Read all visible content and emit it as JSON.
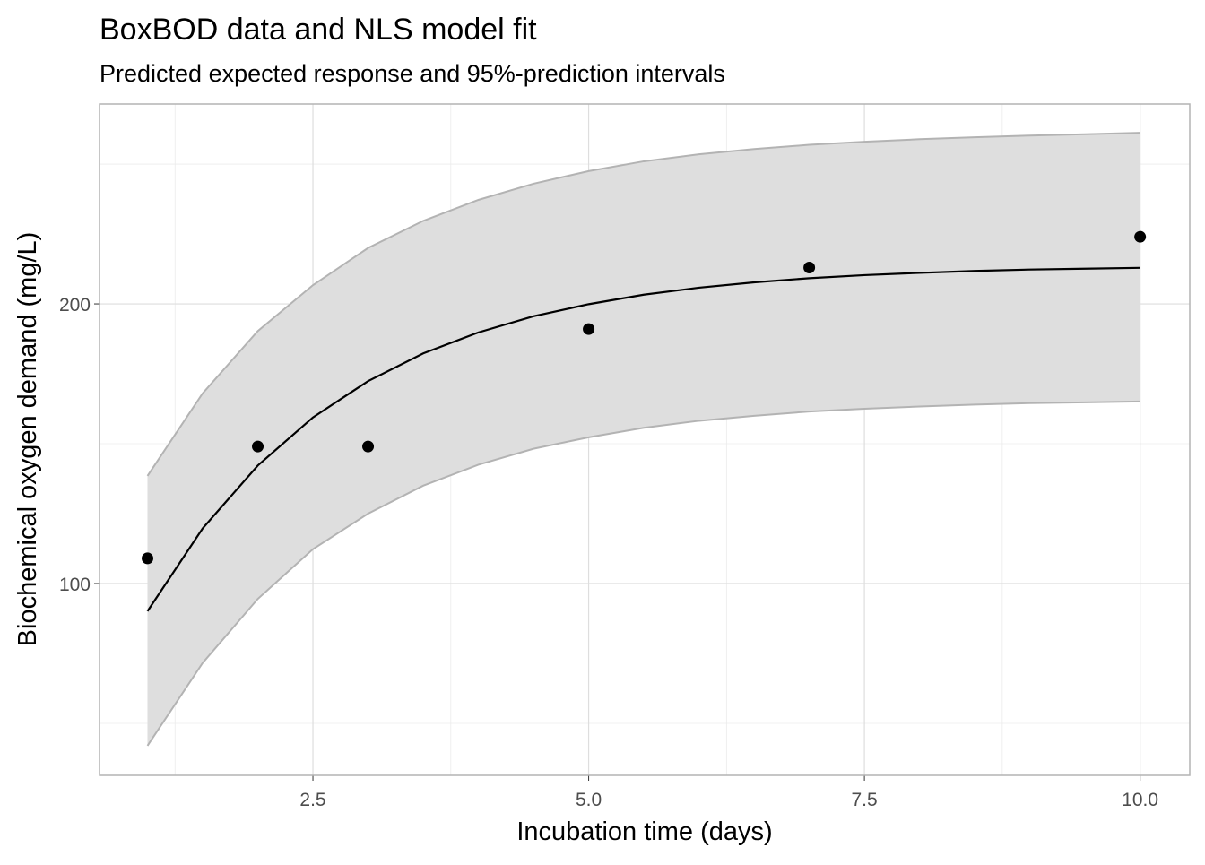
{
  "chart_data": {
    "type": "line",
    "title": "BoxBOD data and NLS model fit",
    "subtitle": "Predicted expected response and 95%-prediction intervals",
    "xlabel": "Incubation time (days)",
    "ylabel": "Biochemical oxygen demand (mg/L)",
    "xlim": [
      0.565,
      10.45
    ],
    "ylim": [
      31.4,
      271.5
    ],
    "xticks": [
      2.5,
      {
        "value": 5,
        "label": "5.0"
      },
      7.5,
      {
        "value": 10,
        "label": "10.0"
      }
    ],
    "yticks": [
      100,
      200
    ],
    "x_minor_ticks": [
      1.25,
      3.75,
      6.25,
      8.75
    ],
    "y_minor_ticks": [
      50,
      150,
      250
    ],
    "grid": true,
    "points": {
      "x": [
        1,
        2,
        3,
        5,
        7,
        10
      ],
      "values": [
        109,
        149,
        149,
        191,
        213,
        224
      ],
      "color": "#000000"
    },
    "fit": {
      "x": [
        1,
        1.5,
        2,
        2.5,
        3,
        3.5,
        4,
        4.5,
        5,
        5.5,
        6,
        6.5,
        7,
        7.5,
        8,
        8.5,
        9,
        9.5,
        10
      ],
      "values": [
        90.1,
        119.7,
        142.2,
        159.4,
        172.4,
        182.3,
        189.8,
        195.6,
        199.9,
        203.3,
        205.8,
        207.7,
        209.2,
        210.3,
        211.1,
        211.8,
        212.3,
        212.6,
        212.9
      ],
      "lower": [
        42.0,
        71.6,
        94.5,
        112.3,
        125.0,
        135.0,
        142.5,
        148.2,
        152.3,
        155.7,
        158.2,
        160.0,
        161.5,
        162.5,
        163.3,
        164.0,
        164.5,
        164.8,
        165.1
      ],
      "upper": [
        138.5,
        168.0,
        190.3,
        206.7,
        220.0,
        229.7,
        237.2,
        243.0,
        247.5,
        251.0,
        253.5,
        255.4,
        256.9,
        258.0,
        258.9,
        259.6,
        260.2,
        260.7,
        261.2
      ],
      "color": "#000000",
      "band_color": "#dedede",
      "band_border": "#b3b3b3"
    }
  }
}
